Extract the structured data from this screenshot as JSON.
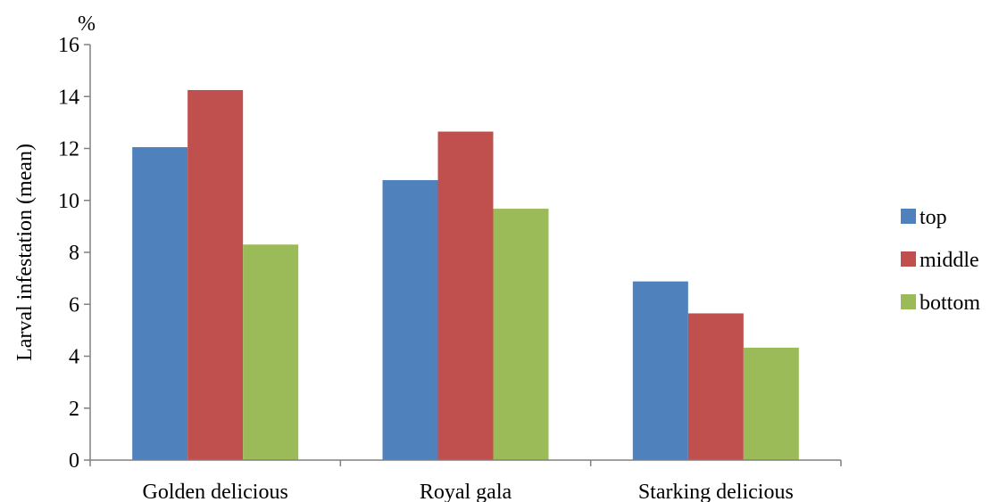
{
  "chart_data": {
    "type": "bar",
    "title": "",
    "unit_label": "%",
    "xlabel": "",
    "ylabel": "Larval  infestation (mean)",
    "ylim": [
      0,
      16
    ],
    "yticks": [
      0,
      2,
      4,
      6,
      8,
      10,
      12,
      14,
      16
    ],
    "grid": false,
    "legend_position": "right",
    "categories": [
      "Golden delicious",
      "Royal gala",
      "Starking delicious"
    ],
    "series": [
      {
        "name": "top",
        "color": "#4f81bd",
        "values": [
          12.05,
          10.78,
          6.88
        ]
      },
      {
        "name": "middle",
        "color": "#c0504d",
        "values": [
          14.25,
          12.65,
          5.65
        ]
      },
      {
        "name": "bottom",
        "color": "#9bbb59",
        "values": [
          8.3,
          9.68,
          4.33
        ]
      }
    ]
  }
}
